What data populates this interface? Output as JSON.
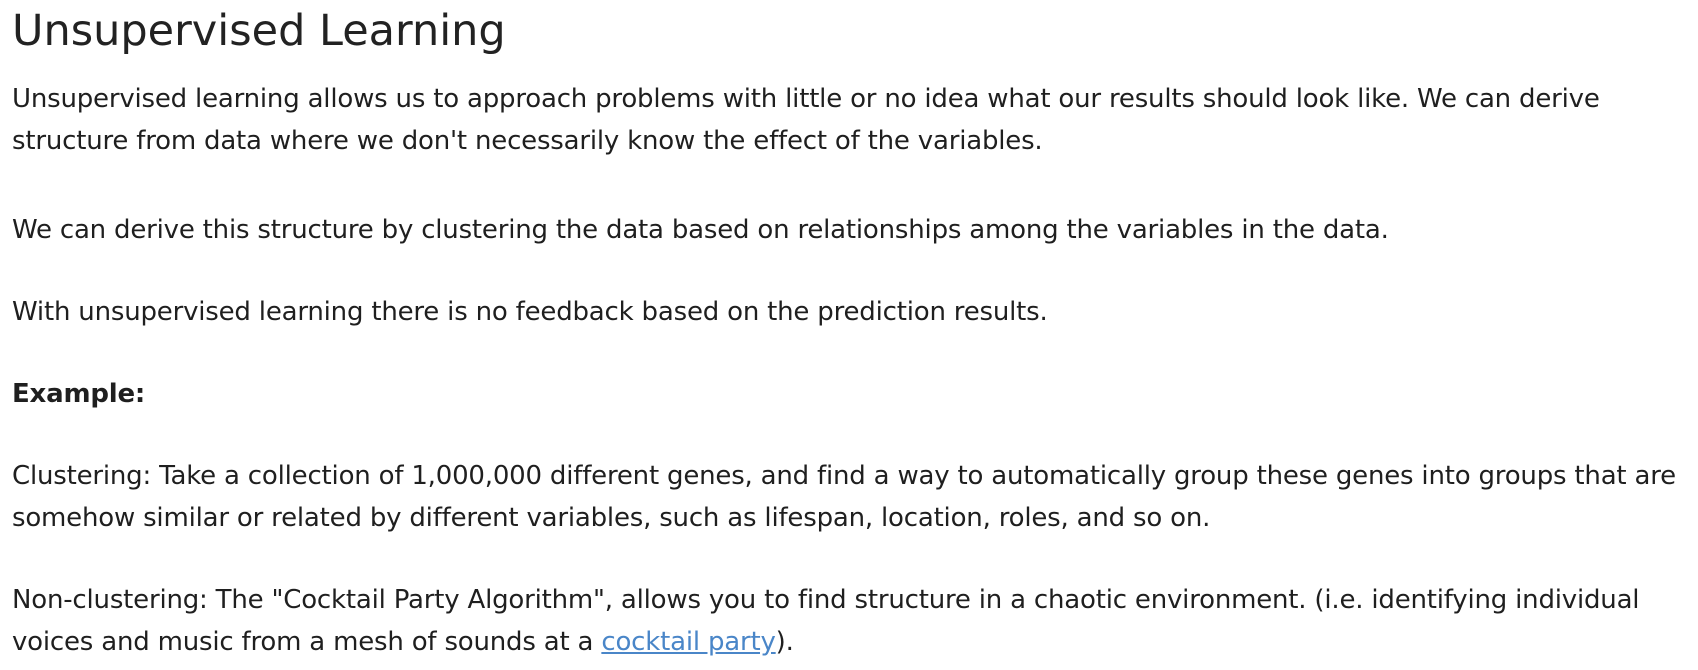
{
  "title": "Unsupervised Learning",
  "paragraphs": {
    "intro": "Unsupervised learning allows us to approach problems with little or no idea what our results should look like. We can derive structure from data where we don't necessarily know the effect of the variables.",
    "clustering_structure": "We can derive this structure by clustering the data based on relationships among the variables in the data.",
    "no_feedback": "With unsupervised learning there is no feedback based on the prediction results.",
    "example_heading": "Example:",
    "clustering_example": "Clustering: Take a collection of 1,000,000 different genes, and find a way to automatically group these genes into groups that are somehow similar or related by different variables, such as lifespan, location, roles, and so on.",
    "nonclustering_prefix": "Non-clustering: The \"Cocktail Party Algorithm\", allows you to find structure in a chaotic environment. (i.e. identifying individual voices and music from a mesh of sounds at a ",
    "nonclustering_link": "cocktail party",
    "nonclustering_suffix": ")."
  },
  "colors": {
    "text": "#1f1f1f",
    "link": "#4a86c8"
  }
}
